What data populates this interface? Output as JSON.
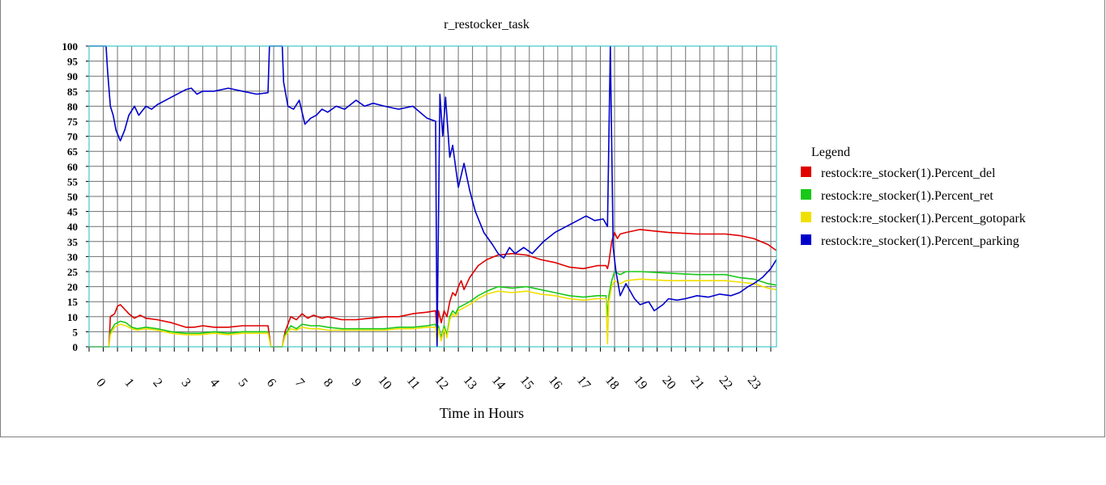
{
  "chart_data": {
    "type": "line",
    "title": "r_restocker_task",
    "xlabel": "Time in Hours",
    "ylabel": "",
    "xlim": [
      -0.4,
      23.8
    ],
    "ylim": [
      0,
      100
    ],
    "x_ticks": [
      "0",
      "1",
      "2",
      "3",
      "4",
      "5",
      "6",
      "7",
      "8",
      "9",
      "10",
      "11",
      "12",
      "13",
      "14",
      "15",
      "16",
      "17",
      "18",
      "19",
      "20",
      "21",
      "22",
      "23"
    ],
    "y_ticks": [
      "0",
      "5",
      "10",
      "15",
      "20",
      "25",
      "30",
      "35",
      "40",
      "45",
      "50",
      "55",
      "60",
      "65",
      "70",
      "75",
      "80",
      "85",
      "90",
      "95",
      "100"
    ],
    "grid": true,
    "legend": {
      "title": "Legend",
      "placement": "right"
    },
    "series": [
      {
        "name": "restock:re_stocker(1).Percent_del",
        "color": "#e00000",
        "points": [
          [
            -0.4,
            0
          ],
          [
            0.3,
            0
          ],
          [
            0.35,
            10
          ],
          [
            0.5,
            11
          ],
          [
            0.6,
            13.5
          ],
          [
            0.7,
            14
          ],
          [
            0.8,
            13
          ],
          [
            1,
            11
          ],
          [
            1.2,
            9.5
          ],
          [
            1.4,
            10.5
          ],
          [
            1.6,
            9.5
          ],
          [
            2,
            9
          ],
          [
            2.5,
            8
          ],
          [
            3,
            6.5
          ],
          [
            3.3,
            6.5
          ],
          [
            3.6,
            7
          ],
          [
            4,
            6.5
          ],
          [
            4.5,
            6.5
          ],
          [
            5,
            7
          ],
          [
            5.5,
            7
          ],
          [
            5.9,
            7
          ],
          [
            6,
            0
          ],
          [
            6.4,
            0
          ],
          [
            6.5,
            5
          ],
          [
            6.7,
            10
          ],
          [
            6.9,
            9
          ],
          [
            7.1,
            11
          ],
          [
            7.3,
            9.5
          ],
          [
            7.5,
            10.5
          ],
          [
            7.8,
            9.5
          ],
          [
            8,
            10
          ],
          [
            8.5,
            9
          ],
          [
            9,
            9
          ],
          [
            9.5,
            9.5
          ],
          [
            10,
            10
          ],
          [
            10.5,
            10
          ],
          [
            11,
            11
          ],
          [
            11.5,
            11.5
          ],
          [
            11.8,
            12
          ],
          [
            11.85,
            5
          ],
          [
            11.9,
            12
          ],
          [
            12,
            8
          ],
          [
            12.1,
            12
          ],
          [
            12.2,
            10
          ],
          [
            12.3,
            15
          ],
          [
            12.4,
            18
          ],
          [
            12.5,
            17
          ],
          [
            12.6,
            20
          ],
          [
            12.7,
            22
          ],
          [
            12.8,
            19
          ],
          [
            13,
            23
          ],
          [
            13.3,
            27
          ],
          [
            13.6,
            29
          ],
          [
            14,
            30.5
          ],
          [
            14.5,
            31
          ],
          [
            15,
            30.5
          ],
          [
            15.5,
            29
          ],
          [
            16,
            28
          ],
          [
            16.5,
            26.5
          ],
          [
            17,
            26
          ],
          [
            17.5,
            27
          ],
          [
            17.8,
            27
          ],
          [
            17.85,
            26
          ],
          [
            17.9,
            28
          ],
          [
            18,
            35
          ],
          [
            18.1,
            38
          ],
          [
            18.2,
            36
          ],
          [
            18.3,
            37.5
          ],
          [
            18.5,
            38
          ],
          [
            19,
            39
          ],
          [
            19.5,
            38.5
          ],
          [
            20,
            38
          ],
          [
            21,
            37.5
          ],
          [
            22,
            37.5
          ],
          [
            22.5,
            37
          ],
          [
            23,
            36
          ],
          [
            23.5,
            34
          ],
          [
            23.8,
            32
          ]
        ]
      },
      {
        "name": "restock:re_stocker(1).Percent_ret",
        "color": "#18c818",
        "points": [
          [
            -0.4,
            0
          ],
          [
            0.3,
            0
          ],
          [
            0.35,
            5
          ],
          [
            0.5,
            7.5
          ],
          [
            0.7,
            8.5
          ],
          [
            0.9,
            8
          ],
          [
            1.1,
            6.5
          ],
          [
            1.3,
            6
          ],
          [
            1.6,
            6.5
          ],
          [
            2,
            6
          ],
          [
            2.5,
            5
          ],
          [
            3,
            4.5
          ],
          [
            3.5,
            4.5
          ],
          [
            4,
            5
          ],
          [
            4.5,
            4.5
          ],
          [
            5,
            5
          ],
          [
            5.5,
            5
          ],
          [
            5.9,
            5
          ],
          [
            6,
            0
          ],
          [
            6.4,
            0
          ],
          [
            6.5,
            4
          ],
          [
            6.7,
            7
          ],
          [
            6.9,
            6
          ],
          [
            7.1,
            7.5
          ],
          [
            7.4,
            7
          ],
          [
            7.7,
            7
          ],
          [
            8,
            6.5
          ],
          [
            8.5,
            6
          ],
          [
            9,
            6
          ],
          [
            9.5,
            6
          ],
          [
            10,
            6
          ],
          [
            10.5,
            6.5
          ],
          [
            11,
            6.5
          ],
          [
            11.5,
            7
          ],
          [
            11.8,
            7.5
          ],
          [
            11.85,
            2
          ],
          [
            11.9,
            7
          ],
          [
            12,
            3
          ],
          [
            12.1,
            7
          ],
          [
            12.2,
            4
          ],
          [
            12.3,
            10
          ],
          [
            12.4,
            12
          ],
          [
            12.5,
            11
          ],
          [
            12.6,
            13
          ],
          [
            12.8,
            14
          ],
          [
            13,
            15
          ],
          [
            13.3,
            17
          ],
          [
            13.6,
            18.5
          ],
          [
            14,
            20
          ],
          [
            14.5,
            19.5
          ],
          [
            15,
            20
          ],
          [
            15.5,
            19
          ],
          [
            16,
            18
          ],
          [
            16.5,
            17
          ],
          [
            17,
            16.5
          ],
          [
            17.5,
            17
          ],
          [
            17.8,
            17
          ],
          [
            17.85,
            10
          ],
          [
            17.9,
            17
          ],
          [
            18,
            22
          ],
          [
            18.1,
            25
          ],
          [
            18.3,
            24
          ],
          [
            18.5,
            25
          ],
          [
            19,
            25
          ],
          [
            20,
            24.5
          ],
          [
            21,
            24
          ],
          [
            22,
            24
          ],
          [
            22.5,
            23
          ],
          [
            23,
            22.5
          ],
          [
            23.5,
            21
          ],
          [
            23.8,
            20.5
          ]
        ]
      },
      {
        "name": "restock:re_stocker(1).Percent_gotopark",
        "color": "#f0e000",
        "points": [
          [
            -0.4,
            0
          ],
          [
            0.3,
            0
          ],
          [
            0.35,
            4
          ],
          [
            0.5,
            6.5
          ],
          [
            0.7,
            7.5
          ],
          [
            0.9,
            7
          ],
          [
            1.1,
            6
          ],
          [
            1.3,
            5.5
          ],
          [
            1.6,
            6
          ],
          [
            2,
            5.5
          ],
          [
            2.5,
            4.5
          ],
          [
            3,
            4
          ],
          [
            3.5,
            4
          ],
          [
            4,
            4.5
          ],
          [
            4.5,
            4
          ],
          [
            5,
            4.5
          ],
          [
            5.5,
            4.5
          ],
          [
            5.9,
            4.5
          ],
          [
            6,
            0
          ],
          [
            6.4,
            0
          ],
          [
            6.5,
            3.5
          ],
          [
            6.7,
            6
          ],
          [
            6.9,
            5.5
          ],
          [
            7.1,
            6.5
          ],
          [
            7.4,
            6
          ],
          [
            7.7,
            6
          ],
          [
            8,
            5.5
          ],
          [
            8.5,
            5.5
          ],
          [
            9,
            5.5
          ],
          [
            9.5,
            5.5
          ],
          [
            10,
            5.5
          ],
          [
            10.5,
            6
          ],
          [
            11,
            6
          ],
          [
            11.5,
            6.5
          ],
          [
            11.8,
            6.5
          ],
          [
            11.85,
            1
          ],
          [
            11.9,
            6
          ],
          [
            12,
            2
          ],
          [
            12.1,
            6
          ],
          [
            12.2,
            3
          ],
          [
            12.3,
            9
          ],
          [
            12.4,
            11
          ],
          [
            12.5,
            10
          ],
          [
            12.6,
            12
          ],
          [
            12.8,
            13
          ],
          [
            13,
            14
          ],
          [
            13.3,
            16
          ],
          [
            13.6,
            17.5
          ],
          [
            14,
            18.5
          ],
          [
            14.5,
            18
          ],
          [
            15,
            18.5
          ],
          [
            15.5,
            17.5
          ],
          [
            16,
            17
          ],
          [
            16.5,
            16
          ],
          [
            17,
            15.5
          ],
          [
            17.5,
            16
          ],
          [
            17.8,
            16
          ],
          [
            17.85,
            1
          ],
          [
            17.9,
            15
          ],
          [
            18,
            20
          ],
          [
            18.1,
            22
          ],
          [
            18.3,
            21
          ],
          [
            18.5,
            22
          ],
          [
            19,
            22.5
          ],
          [
            20,
            22
          ],
          [
            21,
            22
          ],
          [
            22,
            22
          ],
          [
            22.5,
            21.5
          ],
          [
            23,
            21
          ],
          [
            23.5,
            19.5
          ],
          [
            23.8,
            19
          ]
        ]
      },
      {
        "name": "restock:re_stocker(1).Percent_parking",
        "color": "#0000cc",
        "points": [
          [
            -0.4,
            100
          ],
          [
            0.2,
            100
          ],
          [
            0.25,
            92
          ],
          [
            0.35,
            80
          ],
          [
            0.45,
            77
          ],
          [
            0.55,
            72
          ],
          [
            0.7,
            68.5
          ],
          [
            0.85,
            72
          ],
          [
            1,
            77
          ],
          [
            1.2,
            80
          ],
          [
            1.35,
            77
          ],
          [
            1.6,
            80
          ],
          [
            1.8,
            79
          ],
          [
            2,
            80.5
          ],
          [
            2.5,
            83
          ],
          [
            3,
            85.5
          ],
          [
            3.2,
            86
          ],
          [
            3.4,
            84
          ],
          [
            3.6,
            85
          ],
          [
            4,
            85
          ],
          [
            4.5,
            86
          ],
          [
            5,
            85
          ],
          [
            5.5,
            84
          ],
          [
            5.9,
            84.5
          ],
          [
            5.95,
            100
          ],
          [
            6.4,
            100
          ],
          [
            6.45,
            88
          ],
          [
            6.6,
            80
          ],
          [
            6.8,
            79
          ],
          [
            7,
            82
          ],
          [
            7.2,
            74
          ],
          [
            7.4,
            76
          ],
          [
            7.6,
            77
          ],
          [
            7.8,
            79
          ],
          [
            8,
            78
          ],
          [
            8.3,
            80
          ],
          [
            8.6,
            79
          ],
          [
            9,
            82
          ],
          [
            9.3,
            80
          ],
          [
            9.6,
            81
          ],
          [
            10,
            80
          ],
          [
            10.5,
            79
          ],
          [
            11,
            80
          ],
          [
            11.5,
            76
          ],
          [
            11.8,
            75
          ],
          [
            11.85,
            0
          ],
          [
            11.95,
            84
          ],
          [
            12.05,
            70
          ],
          [
            12.15,
            83
          ],
          [
            12.3,
            63
          ],
          [
            12.4,
            67
          ],
          [
            12.6,
            53
          ],
          [
            12.8,
            61
          ],
          [
            13,
            52
          ],
          [
            13.2,
            45
          ],
          [
            13.5,
            38
          ],
          [
            13.8,
            34
          ],
          [
            14,
            31
          ],
          [
            14.2,
            29.5
          ],
          [
            14.4,
            33
          ],
          [
            14.6,
            31
          ],
          [
            14.9,
            33
          ],
          [
            15.2,
            31
          ],
          [
            15.6,
            35
          ],
          [
            16,
            38
          ],
          [
            16.4,
            40
          ],
          [
            16.8,
            42
          ],
          [
            17.1,
            43.5
          ],
          [
            17.4,
            42
          ],
          [
            17.7,
            42.5
          ],
          [
            17.85,
            40
          ],
          [
            17.95,
            100
          ],
          [
            18.05,
            33
          ],
          [
            18.15,
            25
          ],
          [
            18.3,
            17
          ],
          [
            18.5,
            21
          ],
          [
            18.8,
            16
          ],
          [
            19,
            14
          ],
          [
            19.3,
            15
          ],
          [
            19.5,
            12
          ],
          [
            19.8,
            14
          ],
          [
            20,
            16
          ],
          [
            20.3,
            15.5
          ],
          [
            20.6,
            16
          ],
          [
            21,
            17
          ],
          [
            21.4,
            16.5
          ],
          [
            21.8,
            17.5
          ],
          [
            22.2,
            17
          ],
          [
            22.5,
            18
          ],
          [
            22.8,
            20
          ],
          [
            23,
            21
          ],
          [
            23.3,
            23
          ],
          [
            23.6,
            26
          ],
          [
            23.8,
            29
          ]
        ]
      }
    ]
  }
}
